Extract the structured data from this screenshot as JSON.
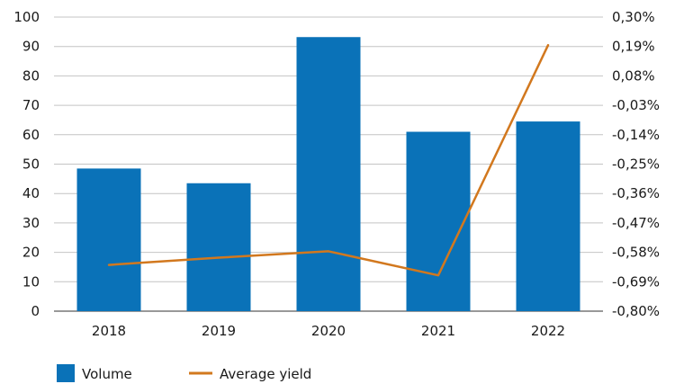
{
  "chart_data": {
    "type": "bar",
    "categories": [
      "2018",
      "2019",
      "2020",
      "2021",
      "2022"
    ],
    "series": [
      {
        "name": "Volume",
        "kind": "bar",
        "axis": "left",
        "color": "#0a72b8",
        "values": [
          48.5,
          43.5,
          93.2,
          61.0,
          64.5
        ]
      },
      {
        "name": "Average yield",
        "kind": "line",
        "axis": "right",
        "color": "#d2781e",
        "values": [
          -0.627,
          -0.6,
          -0.576,
          -0.666,
          0.195
        ]
      }
    ],
    "left_axis": {
      "ylim": [
        0,
        100
      ],
      "ticks": [
        "0",
        "10",
        "20",
        "30",
        "40",
        "50",
        "60",
        "70",
        "80",
        "90",
        "100"
      ]
    },
    "right_axis": {
      "ylim": [
        -0.8,
        0.3
      ],
      "ticks": [
        "-0,80%",
        "-0,69%",
        "-0,58%",
        "-0,47%",
        "-0,36%",
        "-0,25%",
        "-0,14%",
        "-0,03%",
        "0,08%",
        "0,19%",
        "0,30%"
      ]
    },
    "grid": true,
    "legend_position": "bottom-left",
    "title": "",
    "xlabel": "",
    "ylabel": ""
  }
}
